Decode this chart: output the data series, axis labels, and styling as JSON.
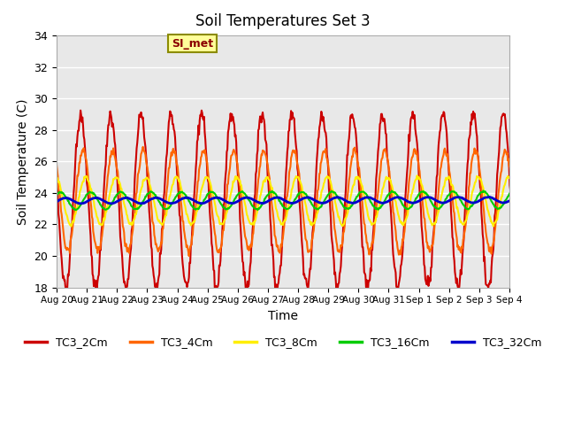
{
  "title": "Soil Temperatures Set 3",
  "xlabel": "Time",
  "ylabel": "Soil Temperature (C)",
  "ylim": [
    18,
    34
  ],
  "xlim": [
    0,
    15
  ],
  "series": [
    "TC3_2Cm",
    "TC3_4Cm",
    "TC3_8Cm",
    "TC3_16Cm",
    "TC3_32Cm"
  ],
  "colors": [
    "#cc0000",
    "#ff6600",
    "#ffee00",
    "#00cc00",
    "#0000cc"
  ],
  "linewidths": [
    1.5,
    1.5,
    1.5,
    1.5,
    2.0
  ],
  "xtick_labels": [
    "Aug 20",
    "Aug 21",
    "Aug 22",
    "Aug 23",
    "Aug 24",
    "Aug 25",
    "Aug 26",
    "Aug 27",
    "Aug 28",
    "Aug 29",
    "Aug 30",
    "Aug 31",
    "Sep 1",
    "Sep 2",
    "Sep 3",
    "Sep 4"
  ],
  "annotation_text": "SI_met",
  "bg_color": "#e8e8e8",
  "mean_temp": 23.5,
  "amplitudes": [
    5.5,
    3.2,
    1.5,
    0.55,
    0.18
  ],
  "phase_shifts": [
    0.0,
    0.07,
    0.17,
    0.33,
    0.5
  ],
  "trend_slopes": [
    0.0,
    0.0,
    0.0,
    0.05,
    0.06
  ],
  "n_days": 15.2,
  "samples_per_day": 48
}
